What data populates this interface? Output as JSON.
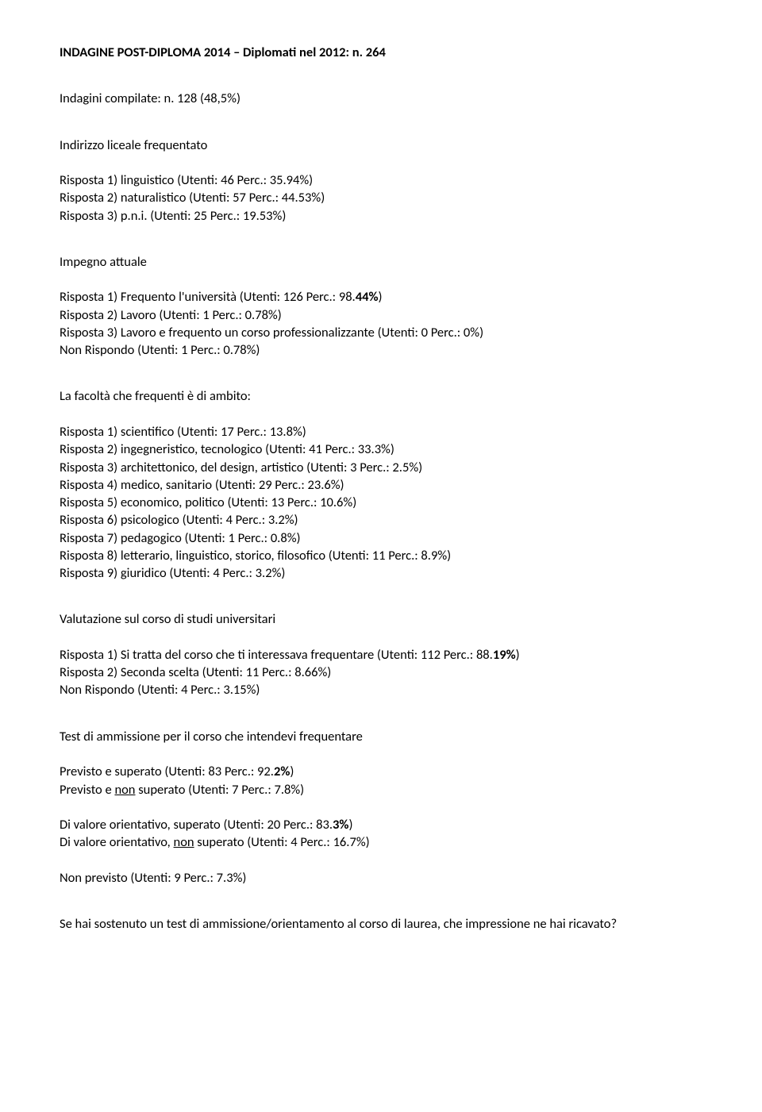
{
  "title_line": "INDAGINE POST-DIPLOMA 2014 – Diplomati nel 2012: n. 264",
  "compilate": "Indagini compilate: n. 128 (48,5%)",
  "q1": {
    "header": "Indirizzo liceale frequentato",
    "r1": "Risposta 1) linguistico (Utenti: 46  Perc.: 35.94%)",
    "r2": "Risposta 2) naturalistico (Utenti: 57  Perc.: 44.53%)",
    "r3": "Risposta 3) p.n.i. (Utenti: 25  Perc.: 19.53%)"
  },
  "q2": {
    "header": "Impegno attuale",
    "r1a": "Risposta 1) Frequento l'università (Utenti: 126  Perc.: 98.",
    "r1b": "44%",
    "r1c": ")",
    "r2": "Risposta 2) Lavoro (Utenti: 1  Perc.: 0.78%)",
    "r3": "Risposta 3) Lavoro e frequento un corso professionalizzante (Utenti: 0  Perc.: 0%)",
    "nr": "Non Rispondo   (Utenti: 1 Perc.: 0.78%)"
  },
  "q3": {
    "header": "La facoltà che frequenti è di ambito:",
    "r1": "Risposta 1) scientifico (Utenti: 17  Perc.: 13.8%)",
    "r2": "Risposta 2) ingegneristico, tecnologico (Utenti: 41  Perc.: 33.3%)",
    "r3": "Risposta 3) architettonico, del design, artistico (Utenti: 3  Perc.: 2.5%)",
    "r4": "Risposta 4) medico, sanitario (Utenti: 29  Perc.: 23.6%)",
    "r5": "Risposta 5) economico, politico (Utenti: 13  Perc.: 10.6%)",
    "r6": "Risposta 6) psicologico (Utenti: 4  Perc.: 3.2%)",
    "r7": "Risposta 7) pedagogico (Utenti: 1  Perc.: 0.8%)",
    "r8": "Risposta 8) letterario, linguistico, storico, filosofico (Utenti: 11  Perc.: 8.9%)",
    "r9": "Risposta 9) giuridico (Utenti: 4  Perc.: 3.2%)"
  },
  "q4": {
    "header": "Valutazione sul corso di studi universitari",
    "r1a": "Risposta 1) Si tratta del corso che ti interessava frequentare (Utenti: 112  Perc.: 88.",
    "r1b": "19%",
    "r1c": ")",
    "r2": "Risposta 2) Seconda scelta (Utenti: 11  Perc.: 8.66%)",
    "nr": "Non Rispondo (Utenti: 4 Perc.: 3.15%)"
  },
  "q5": {
    "header": "Test di ammissione per il corso che intendevi frequentare",
    "p1a": "Previsto e superato (Utenti: 83  Perc.: 92.",
    "p1b": "2%",
    "p1c": ")",
    "p2a": "Previsto e ",
    "p2b": "non",
    "p2c": " superato (Utenti: 7  Perc.: 7.8%)",
    "d1a": "Di valore orientativo, superato (Utenti: 20  Perc.: 83.",
    "d1b": "3%",
    "d1c": ")",
    "d2a": "Di valore orientativo, ",
    "d2b": "non",
    "d2c": " superato (Utenti: 4  Perc.: 16.7%)",
    "np": "Non previsto (Utenti: 9  Perc.: 7.3%)"
  },
  "footer": "Se hai sostenuto un test di ammissione/orientamento al corso di laurea, che impressione ne hai ricavato?"
}
